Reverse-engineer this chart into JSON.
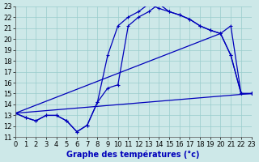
{
  "title": "Graphe des températures (°c)",
  "bg_color": "#cde8e8",
  "line_color": "#0000bb",
  "grid_color": "#99cccc",
  "xlim": [
    0,
    23
  ],
  "ylim": [
    11,
    23
  ],
  "xticks": [
    0,
    1,
    2,
    3,
    4,
    5,
    6,
    7,
    8,
    9,
    10,
    11,
    12,
    13,
    14,
    15,
    16,
    17,
    18,
    19,
    20,
    21,
    22,
    23
  ],
  "yticks": [
    11,
    12,
    13,
    14,
    15,
    16,
    17,
    18,
    19,
    20,
    21,
    22,
    23
  ],
  "curve1_x": [
    0,
    1,
    2,
    3,
    4,
    5,
    6,
    7,
    8,
    9,
    10,
    11,
    12,
    13,
    14,
    15,
    16,
    17,
    18,
    19,
    20,
    21,
    22,
    23
  ],
  "curve1_y": [
    13.2,
    12.8,
    12.5,
    13.0,
    13.0,
    12.5,
    11.5,
    12.1,
    14.2,
    18.5,
    21.2,
    22.0,
    22.5,
    23.2,
    22.8,
    22.5,
    22.2,
    21.8,
    21.2,
    20.8,
    20.5,
    18.5,
    15.0,
    15.0
  ],
  "curve2_x": [
    0,
    1,
    2,
    3,
    4,
    5,
    6,
    7,
    8,
    9,
    10,
    11,
    12,
    13,
    14,
    15,
    16,
    17,
    18,
    19,
    20,
    21,
    22,
    23
  ],
  "curve2_y": [
    13.2,
    12.8,
    12.5,
    13.0,
    13.0,
    12.5,
    11.5,
    12.1,
    14.2,
    15.5,
    15.8,
    21.2,
    22.0,
    22.5,
    23.2,
    22.5,
    22.2,
    21.8,
    21.2,
    20.8,
    20.5,
    18.5,
    15.0,
    15.0
  ],
  "curve3_x": [
    0,
    23
  ],
  "curve3_y": [
    13.2,
    15.0
  ],
  "curve4_x": [
    0,
    20,
    21,
    22,
    23
  ],
  "curve4_y": [
    13.2,
    20.5,
    21.2,
    15.0,
    15.0
  ],
  "marker": "+",
  "linewidth": 0.9,
  "markersize": 3,
  "fontsize_label": 7,
  "fontsize_tick": 6
}
